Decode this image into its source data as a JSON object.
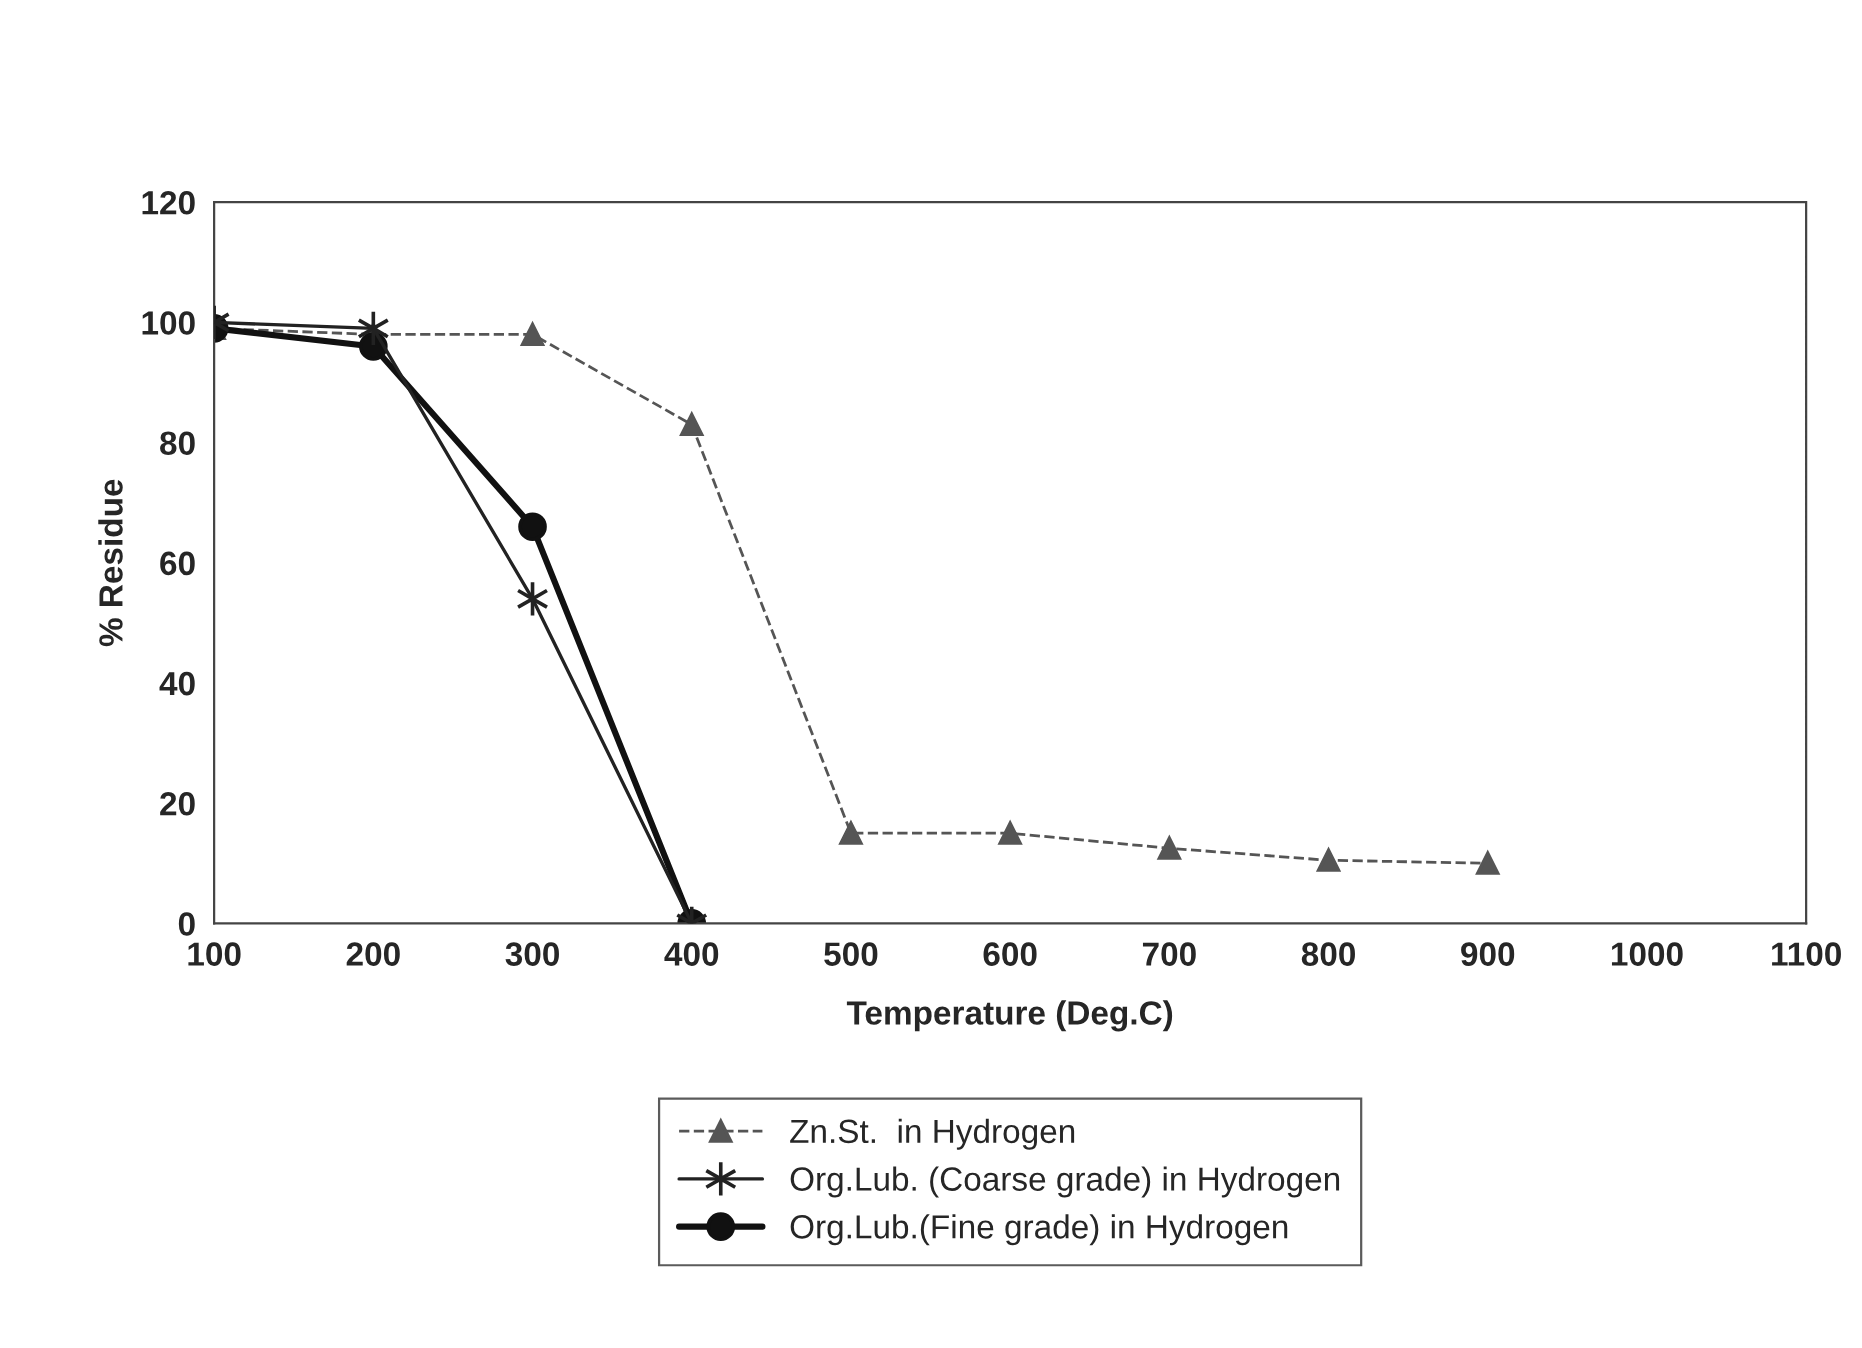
{
  "chart_data": {
    "type": "line",
    "xlabel": "Temperature (Deg.C)",
    "ylabel": "% Residue",
    "xlim": [
      100,
      1100
    ],
    "xticks": [
      100,
      200,
      300,
      400,
      500,
      600,
      700,
      800,
      900,
      1000,
      1100
    ],
    "ylim": [
      0,
      120
    ],
    "yticks": [
      0,
      20,
      40,
      60,
      80,
      100,
      120
    ],
    "grid": false,
    "legend": "bottom",
    "series": [
      {
        "name": "Zn.St.  in Hydrogen",
        "color": "#555555",
        "marker": "triangle",
        "line_style": "dashed",
        "x": [
          100,
          200,
          300,
          400,
          500,
          600,
          700,
          800,
          900
        ],
        "values": [
          99,
          98,
          98,
          83,
          15,
          15,
          12.5,
          10.5,
          10
        ]
      },
      {
        "name": "Org.Lub. (Coarse grade) in Hydrogen",
        "color": "#222222",
        "marker": "cross",
        "line_style": "solid",
        "x": [
          100,
          200,
          300,
          400
        ],
        "values": [
          100,
          99,
          54,
          0
        ]
      },
      {
        "name": "Org.Lub.(Fine grade) in Hydrogen",
        "color": "#111111",
        "marker": "circle",
        "line_style": "solid",
        "x": [
          100,
          200,
          300,
          400
        ],
        "values": [
          99,
          96,
          66,
          0
        ]
      }
    ]
  }
}
